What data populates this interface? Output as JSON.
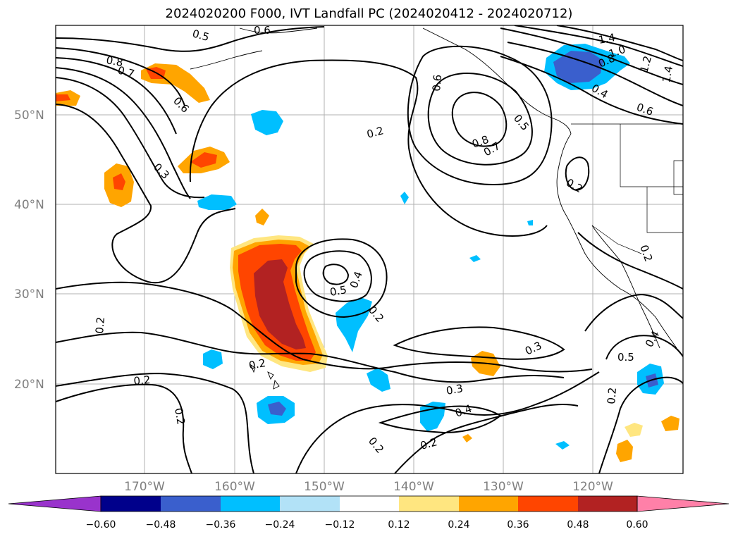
{
  "title": "2024020200 F000, IVT Landfall PC (2024020412 - 2024020712)",
  "lat_labels": [
    "50°N",
    "40°N",
    "30°N",
    "20°N"
  ],
  "lon_labels": [
    "170°W",
    "160°W",
    "150°W",
    "140°W",
    "130°W",
    "120°W"
  ],
  "colorbar": {
    "ticks": [
      "−0.60",
      "−0.48",
      "−0.36",
      "−0.24",
      "−0.12",
      "0.12",
      "0.24",
      "0.36",
      "0.48",
      "0.60"
    ],
    "colors": [
      "#9933cc",
      "#00008b",
      "#3a5fcd",
      "#00bfff",
      "#b2e2f7",
      "#ffffff",
      "#ffe680",
      "#ffa500",
      "#ff4500",
      "#b22222",
      "#ff80a8"
    ]
  },
  "contour_labels": [
    "0.5",
    "0.6",
    "0.8",
    "0.7",
    "0.6",
    "0.3",
    "0.2",
    "0.5",
    "0.4",
    "0.2",
    "0.2",
    "0.2",
    "0.2",
    "0.2",
    "0.2",
    "0.6",
    "0.5",
    "0.8",
    "0.7",
    "1.4",
    "1.0",
    "0.8",
    "1.2",
    "1.4",
    "0.4",
    "0.6",
    "0.2",
    "0.2",
    "0.3",
    "0.3",
    "0.4",
    "0.2",
    "0.5",
    "0.4",
    "0.2"
  ]
}
